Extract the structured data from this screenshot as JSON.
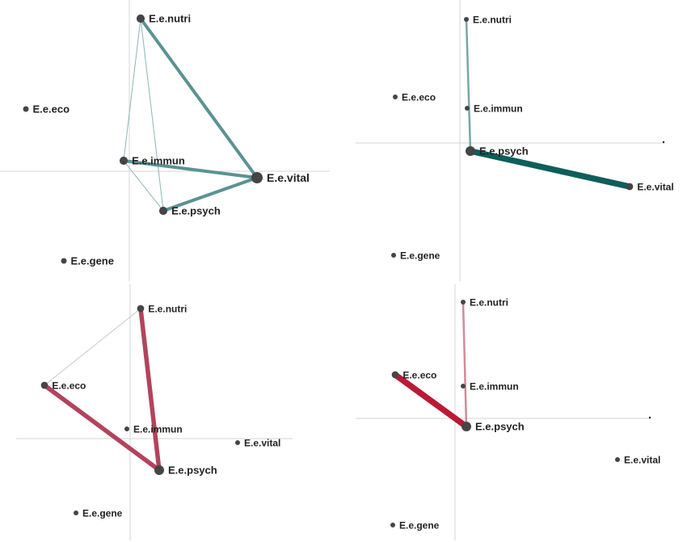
{
  "colors": {
    "axis": "#d6d6d6",
    "node": "#454545",
    "label": "#222222"
  },
  "panels": [
    {
      "nodes": [
        {
          "id": "nutri",
          "label": "E.e.nutri",
          "size": "medium"
        },
        {
          "id": "eco",
          "label": "E.e.eco",
          "size": "small"
        },
        {
          "id": "immun",
          "label": "E.e.immun",
          "size": "medium"
        },
        {
          "id": "vital",
          "label": "E.e.vital",
          "size": "large"
        },
        {
          "id": "psych",
          "label": "E.e.psych",
          "size": "medium"
        },
        {
          "id": "gene",
          "label": "E.e.gene",
          "size": "small"
        }
      ],
      "edges": [
        {
          "from": "nutri",
          "to": "vital",
          "weight": 3,
          "color": "#5b9292"
        },
        {
          "from": "nutri",
          "to": "immun",
          "weight": 1,
          "color": "#8db5b5"
        },
        {
          "from": "nutri",
          "to": "psych",
          "weight": 1,
          "color": "#8db5b5"
        },
        {
          "from": "immun",
          "to": "vital",
          "weight": 3,
          "color": "#5b9292"
        },
        {
          "from": "immun",
          "to": "psych",
          "weight": 1,
          "color": "#8db5b5"
        },
        {
          "from": "psych",
          "to": "vital",
          "weight": 3,
          "color": "#5b9292"
        }
      ]
    },
    {
      "nodes": [
        {
          "id": "nutri",
          "label": "E.e.nutri",
          "size": "small"
        },
        {
          "id": "eco",
          "label": "E.e.eco",
          "size": "small"
        },
        {
          "id": "immun",
          "label": "E.e.immun",
          "size": "small"
        },
        {
          "id": "psych",
          "label": "E.e.psych",
          "size": "large"
        },
        {
          "id": "vital",
          "label": "E.e.vital",
          "size": "medium"
        },
        {
          "id": "gene",
          "label": "E.e.gene",
          "size": "small"
        }
      ],
      "edges": [
        {
          "from": "nutri",
          "to": "psych",
          "weight": 2,
          "color": "#7aa6a6"
        },
        {
          "from": "psych",
          "to": "vital",
          "weight": 5,
          "color": "#0e5e5c"
        }
      ]
    },
    {
      "nodes": [
        {
          "id": "nutri",
          "label": "E.e.nutri",
          "size": "medium"
        },
        {
          "id": "eco",
          "label": "E.e.eco",
          "size": "medium"
        },
        {
          "id": "immun",
          "label": "E.e.immun",
          "size": "small"
        },
        {
          "id": "vital",
          "label": "E.e.vital",
          "size": "small"
        },
        {
          "id": "psych",
          "label": "E.e.psych",
          "size": "large"
        },
        {
          "id": "gene",
          "label": "E.e.gene",
          "size": "small"
        }
      ],
      "edges": [
        {
          "from": "nutri",
          "to": "eco",
          "weight": 1,
          "color": "#c8c8c8"
        },
        {
          "from": "nutri",
          "to": "psych",
          "weight": 4,
          "color": "#b3435c"
        },
        {
          "from": "eco",
          "to": "psych",
          "weight": 4,
          "color": "#b3435c"
        }
      ]
    },
    {
      "nodes": [
        {
          "id": "nutri",
          "label": "E.e.nutri",
          "size": "small"
        },
        {
          "id": "eco",
          "label": "E.e.eco",
          "size": "medium"
        },
        {
          "id": "immun",
          "label": "E.e.immun",
          "size": "small"
        },
        {
          "id": "psych",
          "label": "E.e.psych",
          "size": "large"
        },
        {
          "id": "vital",
          "label": "E.e.vital",
          "size": "small"
        },
        {
          "id": "gene",
          "label": "E.e.gene",
          "size": "small"
        }
      ],
      "edges": [
        {
          "from": "nutri",
          "to": "psych",
          "weight": 2,
          "color": "#d38a9b"
        },
        {
          "from": "eco",
          "to": "psych",
          "weight": 5,
          "color": "#ba1a35"
        }
      ]
    }
  ]
}
